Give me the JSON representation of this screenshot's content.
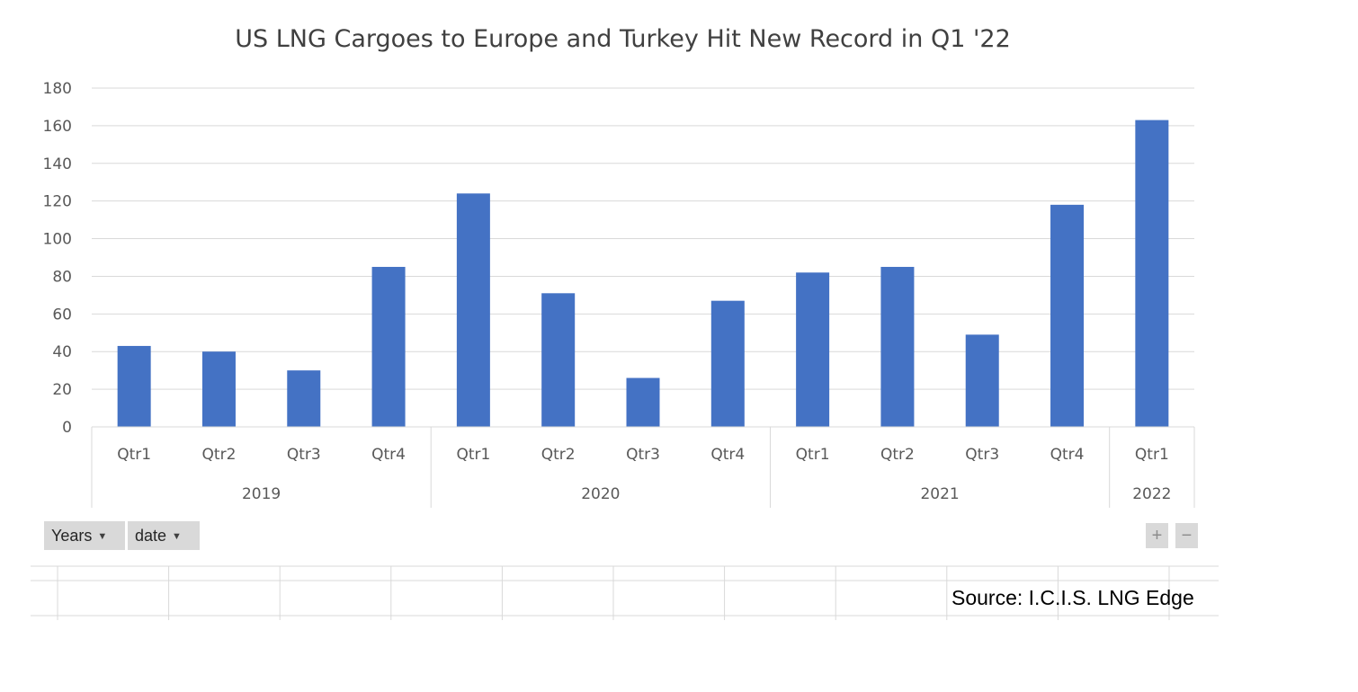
{
  "chart_data": {
    "type": "bar",
    "title": "US LNG Cargoes to Europe and Turkey Hit New Record in Q1 '22",
    "categories": [
      "Qtr1",
      "Qtr2",
      "Qtr3",
      "Qtr4",
      "Qtr1",
      "Qtr2",
      "Qtr3",
      "Qtr4",
      "Qtr1",
      "Qtr2",
      "Qtr3",
      "Qtr4",
      "Qtr1"
    ],
    "groups": [
      {
        "label": "2019",
        "count": 4
      },
      {
        "label": "2020",
        "count": 4
      },
      {
        "label": "2021",
        "count": 4
      },
      {
        "label": "2022",
        "count": 1
      }
    ],
    "values": [
      43,
      40,
      30,
      85,
      124,
      71,
      26,
      67,
      82,
      85,
      49,
      118,
      163
    ],
    "yticks": [
      "0",
      "20",
      "40",
      "60",
      "80",
      "100",
      "120",
      "140",
      "160",
      "180"
    ],
    "ylim": [
      0,
      180
    ],
    "grid": true,
    "legend": "none",
    "bar_color": "#4472c4"
  },
  "controls": {
    "years_label": "Years",
    "date_label": "date",
    "zoom_in": "+",
    "zoom_out": "−"
  },
  "source": "Source: I.C.I.S. LNG Edge"
}
